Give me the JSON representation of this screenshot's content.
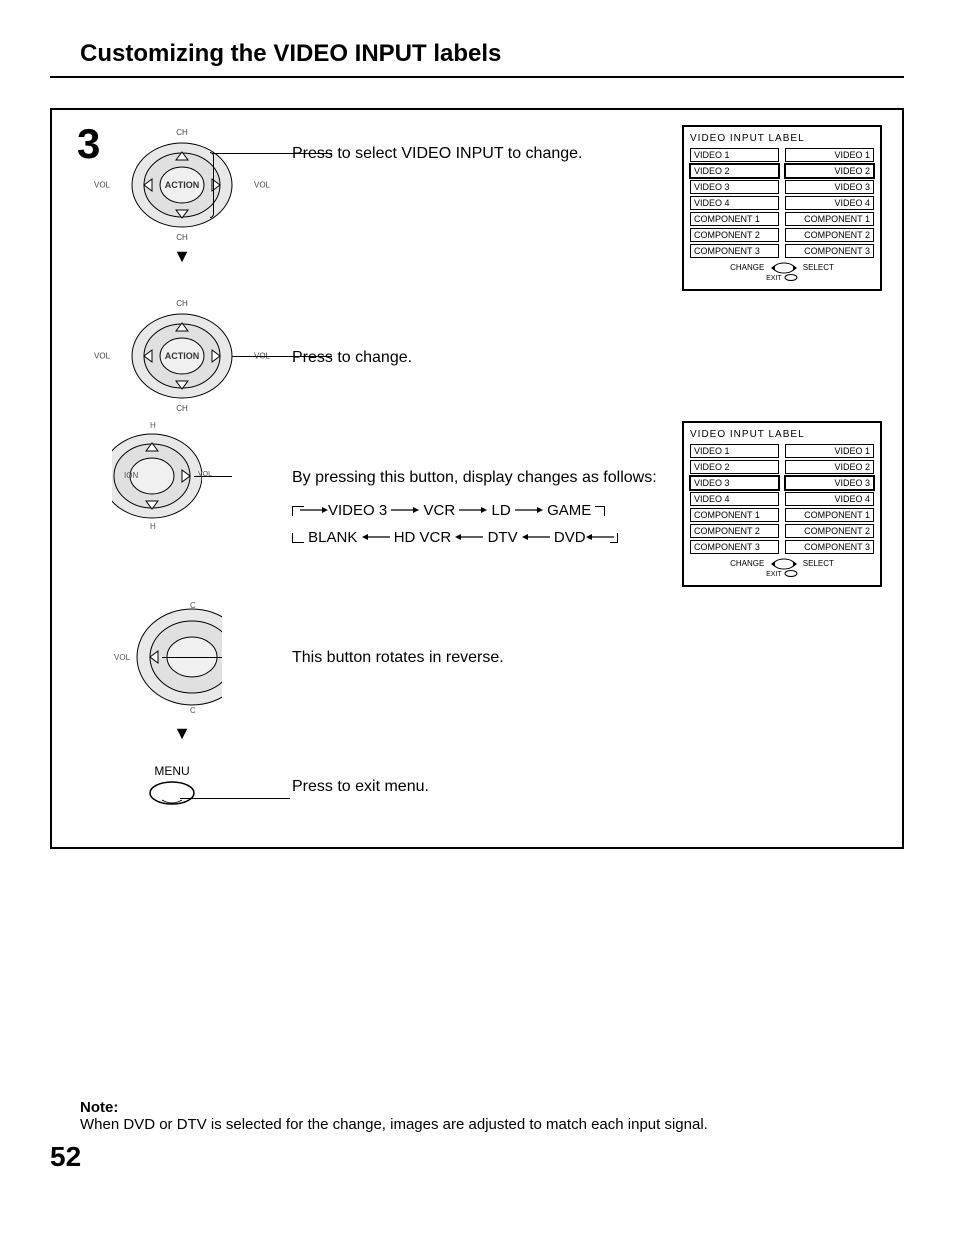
{
  "page": {
    "title": "Customizing the VIDEO INPUT labels",
    "number": "52"
  },
  "step_number": "3",
  "remote_labels": {
    "ch": "CH",
    "vol": "VOL",
    "action": "ACTION",
    "h": "H",
    "ion": "ION",
    "c": "C",
    "menu": "MENU"
  },
  "instructions": {
    "select": "Press to select VIDEO INPUT to change.",
    "change": "Press to change.",
    "sequence_intro": "By pressing this button, display changes as follows:",
    "reverse": "This button rotates in reverse.",
    "exit": "Press to exit menu."
  },
  "sequence": {
    "top": [
      "VIDEO 3",
      "VCR",
      "LD",
      "GAME"
    ],
    "bottom": [
      "BLANK",
      "HD VCR",
      "DTV",
      "DVD"
    ]
  },
  "menu": {
    "title": "VIDEO  INPUT  LABEL",
    "rows": [
      {
        "left": "VIDEO 1",
        "right": "VIDEO 1"
      },
      {
        "left": "VIDEO 2",
        "right": "VIDEO 2"
      },
      {
        "left": "VIDEO 3",
        "right": "VIDEO 3"
      },
      {
        "left": "VIDEO 4",
        "right": "VIDEO 4"
      },
      {
        "left": "COMPONENT 1",
        "right": "COMPONENT 1"
      },
      {
        "left": "COMPONENT 2",
        "right": "COMPONENT 2"
      },
      {
        "left": "COMPONENT 3",
        "right": "COMPONENT 3"
      }
    ],
    "selected_index_a": 1,
    "selected_index_b": 2,
    "footer_change": "CHANGE",
    "footer_select": "SELECT",
    "footer_exit": "EXIT"
  },
  "note": {
    "label": "Note:",
    "text": "When DVD or DTV is selected for the change, images are adjusted to match each input signal."
  }
}
